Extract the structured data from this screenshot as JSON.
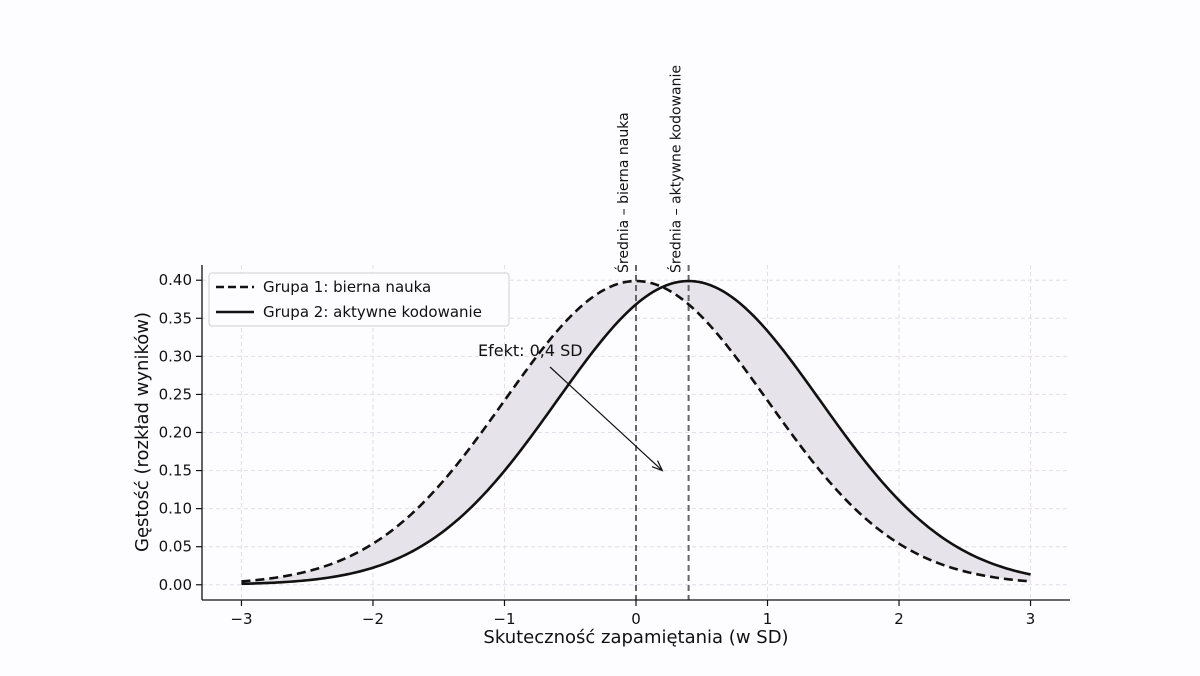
{
  "chart_data": {
    "type": "line",
    "title": "",
    "xlabel": "Skuteczność zapamiętania (w SD)",
    "ylabel": "Gęstość (rozkład wyników)",
    "xlim": [
      -3.3,
      3.3
    ],
    "ylim": [
      -0.02,
      0.42
    ],
    "xticks": [
      -3,
      -2,
      -1,
      0,
      1,
      2,
      3
    ],
    "xtick_labels": [
      "−3",
      "−2",
      "−1",
      "0",
      "1",
      "2",
      "3"
    ],
    "yticks": [
      0.0,
      0.05,
      0.1,
      0.15,
      0.2,
      0.25,
      0.3,
      0.35,
      0.4
    ],
    "ytick_labels": [
      "0.00",
      "0.05",
      "0.10",
      "0.15",
      "0.20",
      "0.25",
      "0.30",
      "0.35",
      "0.40"
    ],
    "grid": true,
    "legend_position": "top-left",
    "x_range": [
      -3,
      3
    ],
    "series": [
      {
        "name": "Grupa 1: bierna nauka",
        "mean": 0.0,
        "sd": 1.0,
        "style": "dashed",
        "color": "#111111"
      },
      {
        "name": "Grupa 2: aktywne kodowanie",
        "mean": 0.4,
        "sd": 1.0,
        "style": "solid",
        "color": "#111111"
      }
    ],
    "fill_between": {
      "color": "#e6e4ea"
    },
    "vlines": [
      {
        "x": 0.0,
        "label": "Średnia – bierna nauka",
        "color": "#666666"
      },
      {
        "x": 0.4,
        "label": "Średnia – aktywne kodowanie",
        "color": "#666666"
      }
    ],
    "annotation": {
      "text": "Efekt: 0,4 SD",
      "text_x": -1.0,
      "text_y": 0.305,
      "arrow_to_x": 0.2,
      "arrow_to_y": 0.15
    }
  }
}
